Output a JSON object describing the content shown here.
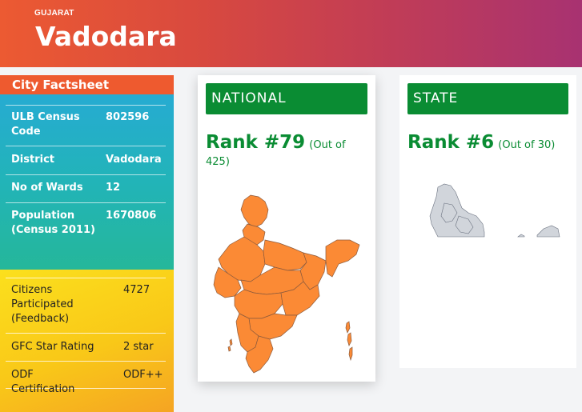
{
  "header": {
    "state": "GUJARAT",
    "city": "Vadodara"
  },
  "factsheet": {
    "title": "City Factsheet",
    "rows": [
      {
        "key": "ULB Census Code",
        "value": "802596"
      },
      {
        "key": "District",
        "value": "Vadodara"
      },
      {
        "key": "No of Wards",
        "value": "12"
      },
      {
        "key": "Population (Census 2011)",
        "value": "1670806"
      }
    ],
    "lower_rows": [
      {
        "key": "Citizens Participated (Feedback)",
        "value": "4727"
      },
      {
        "key": "GFC Star Rating",
        "value": "2 star"
      },
      {
        "key": "ODF Certification",
        "value": "ODF++"
      }
    ]
  },
  "national": {
    "title": "NATIONAL",
    "rank": "Rank #79",
    "out_of": "(Out of 425)",
    "map_color": "#fb8a35"
  },
  "state": {
    "title": "STATE",
    "rank": "Rank #6",
    "out_of": "(Out of 30)",
    "map_color": "#d1d5db"
  },
  "colors": {
    "green": "#0a8c33",
    "orange": "#ee5a2f"
  }
}
